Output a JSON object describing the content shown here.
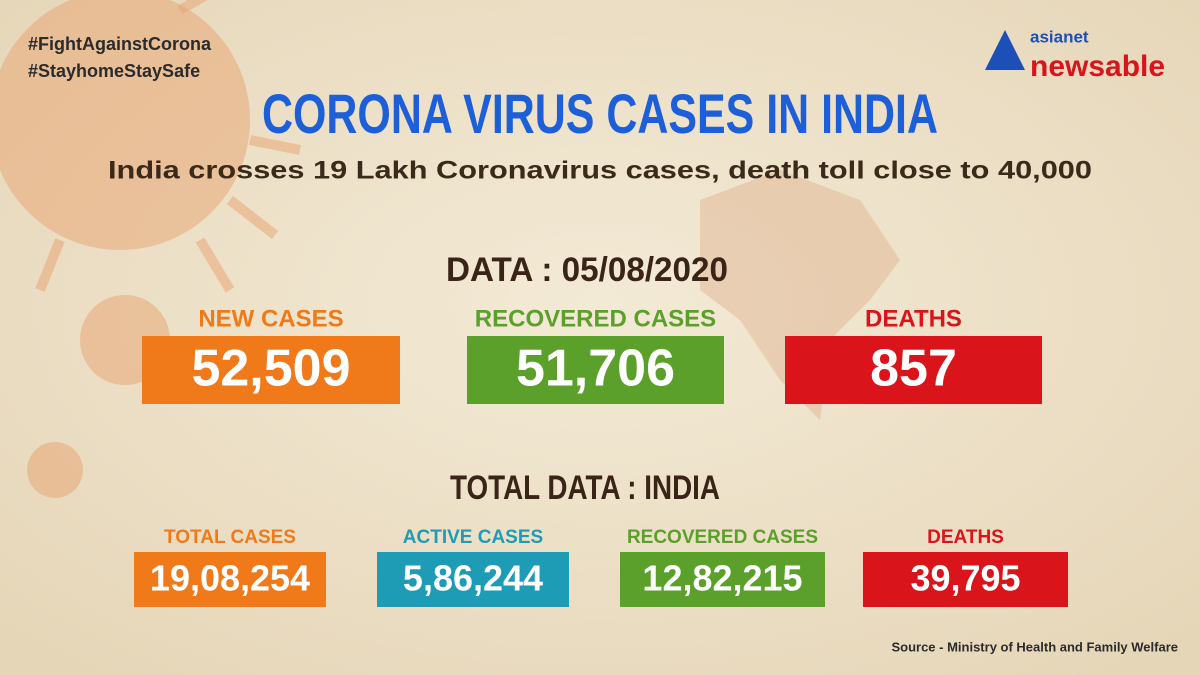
{
  "header": {
    "hashtags": [
      "#FightAgainstCorona",
      "#StayhomeStaySafe"
    ],
    "logo_top": "asianet",
    "logo_bottom": "newsable"
  },
  "title": "CORONA VIRUS CASES IN INDIA",
  "subtitle": "India crosses 19 Lakh Coronavirus cases, death toll close to 40,000",
  "daily": {
    "heading": "DATA : 05/08/2020",
    "items": [
      {
        "label": "NEW CASES",
        "value": "52,509"
      },
      {
        "label": "RECOVERED CASES",
        "value": "51,706"
      },
      {
        "label": "DEATHS",
        "value": "857"
      }
    ]
  },
  "totals": {
    "heading": "TOTAL DATA : INDIA",
    "items": [
      {
        "label": "TOTAL CASES",
        "value": "19,08,254"
      },
      {
        "label": "ACTIVE CASES",
        "value": "5,86,244"
      },
      {
        "label": "RECOVERED CASES",
        "value": "12,82,215"
      },
      {
        "label": "DEATHS",
        "value": "39,795"
      }
    ]
  },
  "source": "Source - Ministry of Health and Family Welfare"
}
